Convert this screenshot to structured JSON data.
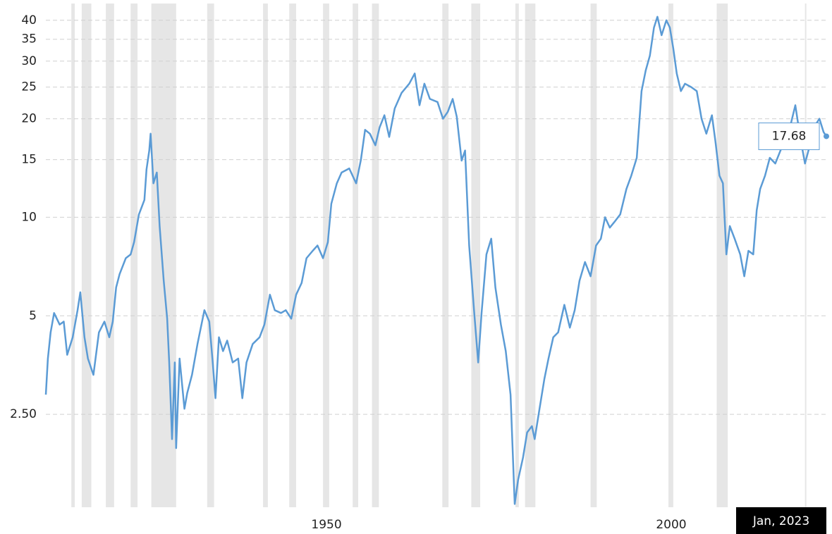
{
  "chart_data": {
    "type": "line",
    "log_y": true,
    "grid": true,
    "color": "#5b9bd5",
    "recession_color": "#e6e6e6",
    "xlim": [
      1909.3,
      2022.5
    ],
    "xticks": [
      1950,
      2000
    ],
    "ylim": [
      1.3,
      45
    ],
    "yticks": [
      {
        "value": 2.5,
        "label": "2.50"
      },
      5,
      10,
      15,
      20,
      25,
      30,
      35,
      40
    ],
    "crosshair_label": "Jan, 2023",
    "recessions": [
      [
        1913.0,
        1913.5
      ],
      [
        1914.5,
        1915.9
      ],
      [
        1918.0,
        1919.2
      ],
      [
        1921.6,
        1922.6
      ],
      [
        1924.6,
        1928.2
      ],
      [
        1932.7,
        1933.7
      ],
      [
        1940.8,
        1941.5
      ],
      [
        1944.6,
        1945.6
      ],
      [
        1949.5,
        1950.4
      ],
      [
        1953.8,
        1954.6
      ],
      [
        1956.6,
        1957.6
      ],
      [
        1966.8,
        1967.7
      ],
      [
        1971.0,
        1972.3
      ],
      [
        1977.4,
        1977.9
      ],
      [
        1978.8,
        1980.3
      ],
      [
        1988.3,
        1989.2
      ],
      [
        1999.6,
        2000.3
      ],
      [
        2006.6,
        2008.2
      ],
      [
        2019.4,
        2019.6
      ]
    ],
    "x": [
      1909.3,
      1909.6,
      1910.0,
      1910.5,
      1911.3,
      1911.9,
      1912.4,
      1913.2,
      1913.9,
      1914.3,
      1914.9,
      1915.4,
      1916.2,
      1917.0,
      1917.8,
      1918.5,
      1919.0,
      1919.5,
      1920.0,
      1920.9,
      1921.6,
      1922.1,
      1922.8,
      1923.6,
      1923.9,
      1924.3,
      1924.5,
      1924.9,
      1925.4,
      1925.8,
      1926.4,
      1926.9,
      1927.2,
      1927.6,
      1928.0,
      1928.2,
      1928.7,
      1929.4,
      1929.8,
      1930.5,
      1931.3,
      1932.3,
      1933.0,
      1933.5,
      1933.9,
      1934.4,
      1935.0,
      1935.6,
      1936.4,
      1937.2,
      1937.8,
      1938.4,
      1939.3,
      1940.3,
      1941.0,
      1941.8,
      1942.5,
      1943.4,
      1944.1,
      1944.9,
      1945.6,
      1946.4,
      1947.1,
      1948.0,
      1948.7,
      1949.5,
      1950.2,
      1950.7,
      1951.5,
      1952.2,
      1953.3,
      1954.3,
      1955.0,
      1955.6,
      1956.3,
      1957.1,
      1957.7,
      1958.4,
      1959.1,
      1959.9,
      1960.9,
      1962.0,
      1962.8,
      1963.5,
      1964.2,
      1965.0,
      1966.1,
      1966.9,
      1967.6,
      1968.3,
      1968.9,
      1969.6,
      1970.1,
      1970.7,
      1971.4,
      1972.0,
      1972.5,
      1973.2,
      1973.9,
      1974.5,
      1975.3,
      1976.0,
      1976.7,
      1977.3,
      1977.8,
      1978.5,
      1979.1,
      1979.8,
      1980.2,
      1980.9,
      1981.6,
      1982.2,
      1982.9,
      1983.6,
      1984.5,
      1985.3,
      1986.0,
      1986.7,
      1987.5,
      1988.3,
      1989.1,
      1989.8,
      1990.4,
      1991.1,
      1991.8,
      1992.6,
      1993.5,
      1994.2,
      1995.0,
      1995.7,
      1996.3,
      1996.9,
      1997.5,
      1998.0,
      1998.6,
      1999.3,
      1999.8,
      2000.3,
      2000.8,
      2001.4,
      2002.0,
      2002.9,
      2003.7,
      2004.4,
      2005.1,
      2005.9,
      2006.4,
      2007.0,
      2007.5,
      2008.0,
      2008.5,
      2009.2,
      2010.0,
      2010.6,
      2011.2,
      2011.9,
      2012.4,
      2012.9,
      2013.6,
      2014.3,
      2015.1,
      2016.0,
      2016.7,
      2017.4,
      2018.0,
      2018.7,
      2019.4,
      2020.0,
      2020.8,
      2021.5,
      2022.1,
      2022.5
    ],
    "values": [
      2.87,
      3.7,
      4.45,
      5.1,
      4.7,
      4.8,
      3.8,
      4.3,
      5.2,
      5.9,
      4.3,
      3.7,
      3.3,
      4.45,
      4.8,
      4.3,
      4.8,
      6.1,
      6.7,
      7.5,
      7.7,
      8.4,
      10.2,
      11.3,
      14,
      16.0,
      18.0,
      12.7,
      13.7,
      9.4,
      6.4,
      4.9,
      3.6,
      2.1,
      3.6,
      1.97,
      3.7,
      2.6,
      2.9,
      3.3,
      4.1,
      5.2,
      4.8,
      3.6,
      2.8,
      4.3,
      3.9,
      4.2,
      3.6,
      3.7,
      2.8,
      3.6,
      4.1,
      4.3,
      4.7,
      5.8,
      5.2,
      5.1,
      5.2,
      4.9,
      5.8,
      6.3,
      7.5,
      7.9,
      8.2,
      7.5,
      8.4,
      11.0,
      12.7,
      13.7,
      14.1,
      12.7,
      15.0,
      18.5,
      18.0,
      16.6,
      18.8,
      20.5,
      17.6,
      21.5,
      24.0,
      25.6,
      27.5,
      22.0,
      25.6,
      23,
      22.5,
      20.0,
      21,
      23,
      20.3,
      14.9,
      16.0,
      8.2,
      5.2,
      3.6,
      5.1,
      7.7,
      8.6,
      6.1,
      4.7,
      3.9,
      2.87,
      1.33,
      1.58,
      1.84,
      2.2,
      2.3,
      2.1,
      2.6,
      3.2,
      3.7,
      4.3,
      4.45,
      5.4,
      4.6,
      5.2,
      6.4,
      7.3,
      6.6,
      8.2,
      8.6,
      10.0,
      9.3,
      9.7,
      10.2,
      12.2,
      13.4,
      15.2,
      24.3,
      28.1,
      31.2,
      38.0,
      41,
      36,
      40,
      38,
      32.8,
      27.5,
      24.3,
      25.6,
      25.0,
      24.3,
      20,
      18,
      20.5,
      17.1,
      13.4,
      12.7,
      7.7,
      9.4,
      8.6,
      7.7,
      6.6,
      7.9,
      7.7,
      10.5,
      12.2,
      13.4,
      15.2,
      14.6,
      16.3,
      17.1,
      19.5,
      22,
      17.6,
      14.6,
      16.3,
      19.0,
      20,
      18.2,
      17.68
    ]
  }
}
